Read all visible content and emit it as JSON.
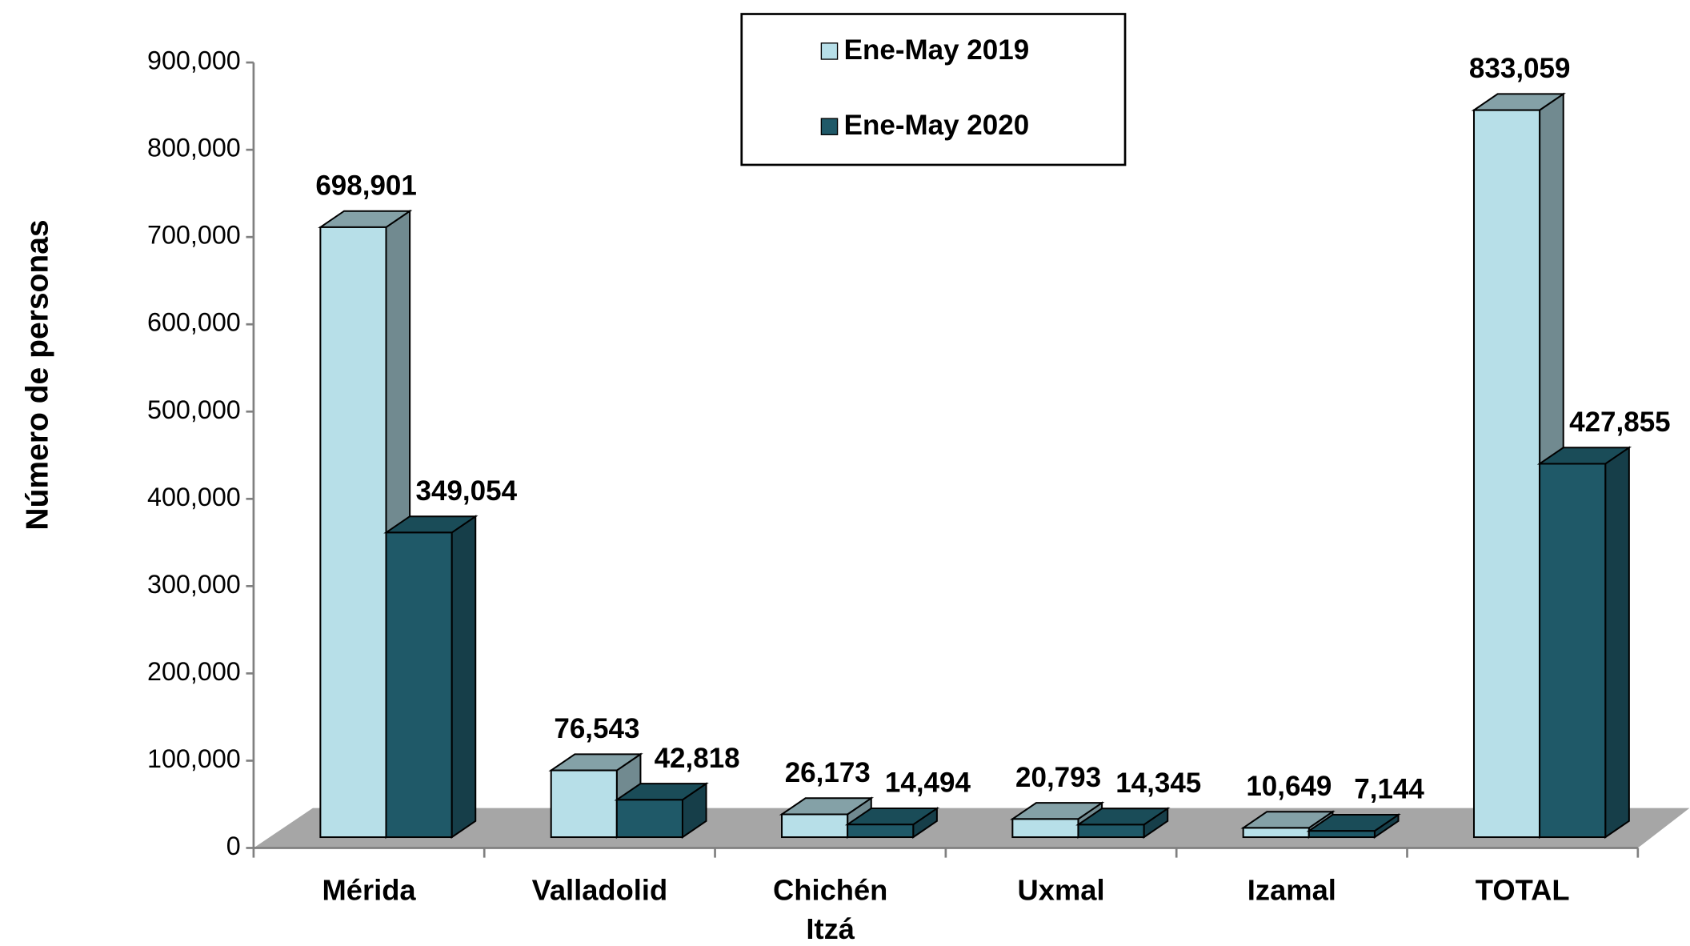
{
  "chart_data": {
    "type": "bar3d",
    "y_label": "Número de personas",
    "categories": [
      "Mérida",
      "Valladolid",
      "Chichén Itzá",
      "Uxmal",
      "Izamal",
      "TOTAL"
    ],
    "series": [
      {
        "name": "Ene-May 2019",
        "color": "#b7dfe8",
        "values": [
          698901,
          76543,
          26173,
          20793,
          10649,
          833059
        ],
        "value_labels": [
          "698,901",
          "76,543",
          "26,173",
          "20,793",
          "10,649",
          "833,059"
        ]
      },
      {
        "name": "Ene-May 2020",
        "color": "#1f5968",
        "values": [
          349054,
          42818,
          14494,
          14345,
          7144,
          427855
        ],
        "value_labels": [
          "349,054",
          "42,818",
          "14,494",
          "14,345",
          "7,144",
          "427,855"
        ]
      }
    ],
    "ylim": [
      0,
      900000
    ],
    "yticks": [
      0,
      {
        "value": 100000,
        "label": "100,000"
      },
      {
        "value": 200000,
        "label": "200,000"
      },
      {
        "value": 300000,
        "label": "300,000"
      },
      {
        "value": 400000,
        "label": "400,000"
      },
      {
        "value": 500000,
        "label": "500,000"
      },
      {
        "value": 600000,
        "label": "600,000"
      },
      {
        "value": 700000,
        "label": "700,000"
      },
      {
        "value": 800000,
        "label": "800,000"
      },
      {
        "value": 900000,
        "label": "900,000"
      }
    ],
    "legend": "top"
  }
}
